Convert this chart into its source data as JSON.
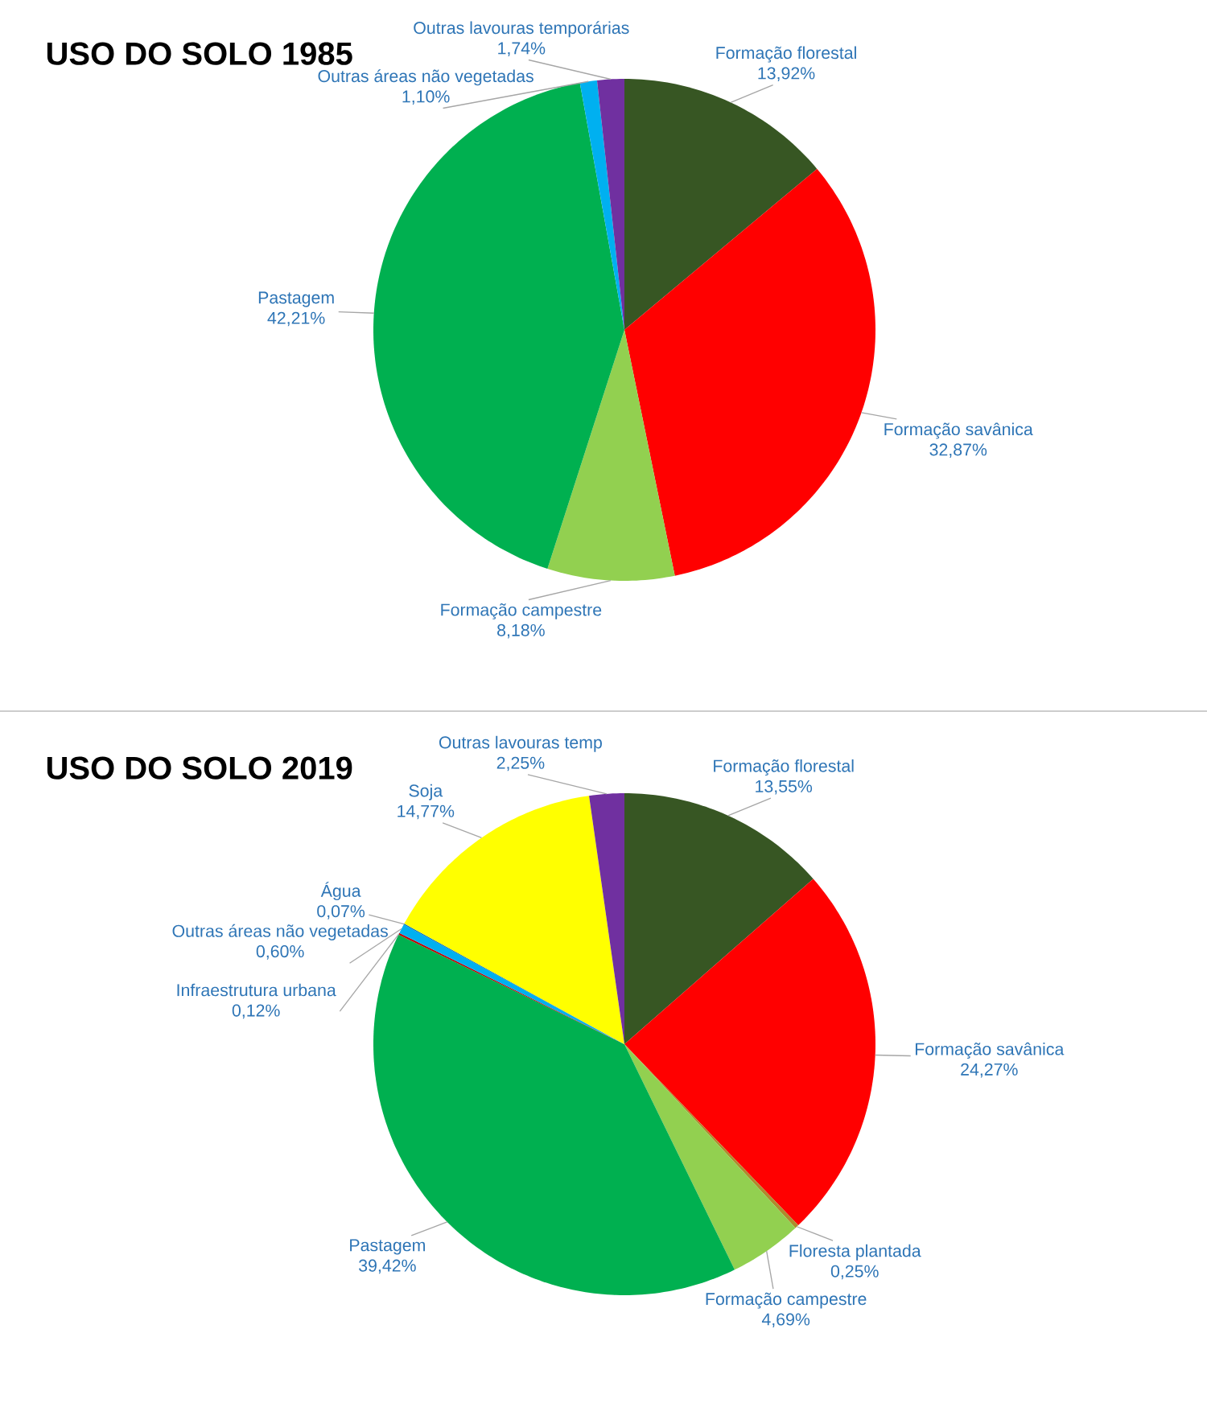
{
  "chart_data": [
    {
      "type": "pie",
      "title": "USO DO SOLO 1985",
      "categories": [
        "Formação florestal",
        "Formação savânica",
        "Formação campestre",
        "Pastagem",
        "Outras áreas não vegetadas",
        "Outras lavouras temporárias"
      ],
      "values": [
        13.92,
        32.87,
        8.18,
        42.21,
        1.1,
        1.74
      ],
      "value_labels": [
        "13,92%",
        "32,87%",
        "8,18%",
        "42,21%",
        "1,10%",
        "1,74%"
      ],
      "colors": [
        "#375623",
        "#ff0000",
        "#92d050",
        "#00b050",
        "#00b0f0",
        "#7030a0"
      ]
    },
    {
      "type": "pie",
      "title": "USO DO SOLO 2019",
      "categories": [
        "Formação florestal",
        "Formação savânica",
        "Floresta plantada",
        "Formação campestre",
        "Pastagem",
        "Infraestrutura urbana",
        "Outras áreas não vegetadas",
        "Água",
        "Soja",
        "Outras lavouras temp"
      ],
      "values": [
        13.55,
        24.27,
        0.25,
        4.69,
        39.42,
        0.12,
        0.6,
        0.07,
        14.77,
        2.25
      ],
      "value_labels": [
        "13,55%",
        "24,27%",
        "0,25%",
        "4,69%",
        "39,42%",
        "0,12%",
        "0,60%",
        "0,07%",
        "14,77%",
        "2,25%"
      ],
      "colors": [
        "#375623",
        "#ff0000",
        "#ad8c2d",
        "#92d050",
        "#00b050",
        "#c00000",
        "#00b0f0",
        "#0070c0",
        "#ffff00",
        "#7030a0"
      ]
    }
  ]
}
